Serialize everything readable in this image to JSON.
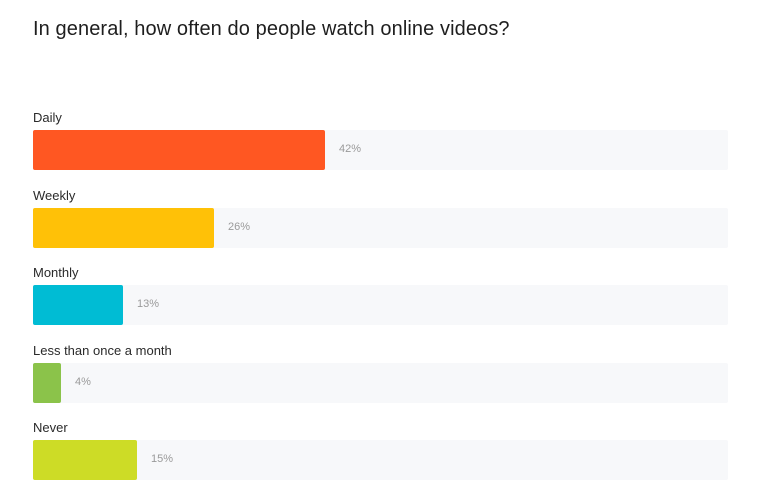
{
  "chart_data": {
    "type": "bar",
    "orientation": "horizontal",
    "title": "In general, how often do people watch online videos?",
    "categories": [
      "Daily",
      "Weekly",
      "Monthly",
      "Less than once a month",
      "Never"
    ],
    "values": [
      42,
      26,
      13,
      4,
      15
    ],
    "value_labels": [
      "42%",
      "26%",
      "13%",
      "4%",
      "15%"
    ],
    "colors": [
      "#ff5722",
      "#ffc107",
      "#00bcd4",
      "#8bc34a",
      "#cddc26"
    ],
    "xlim": [
      0,
      100
    ],
    "track_color": "#f7f8fa",
    "grid": false,
    "legend": "none"
  }
}
